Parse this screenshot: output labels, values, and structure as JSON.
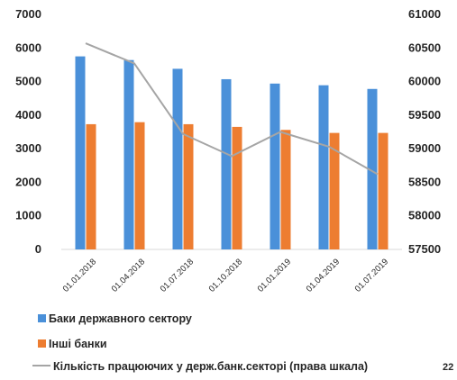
{
  "chart_data": {
    "type": "bar",
    "categories": [
      "01.01.2018",
      "01.04.2018",
      "01.07.2018",
      "01.10.2018",
      "01.01.2019",
      "01.04.2019",
      "01.07.2019"
    ],
    "series": [
      {
        "name": "Баки державного сектору",
        "type": "bar",
        "axis": "left",
        "color": "#4a90d9",
        "values": [
          5750,
          5640,
          5380,
          5070,
          4940,
          4890,
          4780
        ]
      },
      {
        "name": "Інші банки",
        "type": "bar",
        "axis": "left",
        "color": "#ed7d31",
        "values": [
          3730,
          3790,
          3730,
          3650,
          3560,
          3470,
          3470
        ]
      },
      {
        "name": "Кількість працюючих у держ.банк.секторі (права шкала)",
        "type": "line",
        "axis": "right",
        "color": "#a5a5a5",
        "values": [
          60570,
          60270,
          59220,
          58890,
          59250,
          59030,
          58620
        ]
      }
    ],
    "ylim": [
      0,
      7000
    ],
    "yticks": [
      0,
      1000,
      2000,
      3000,
      4000,
      5000,
      6000,
      7000
    ],
    "y2lim": [
      57500,
      61000
    ],
    "y2ticks": [
      57500,
      58000,
      58500,
      59000,
      59500,
      60000,
      60500,
      61000
    ],
    "grid": false,
    "legend_position": "bottom-left"
  },
  "page_number": "22"
}
